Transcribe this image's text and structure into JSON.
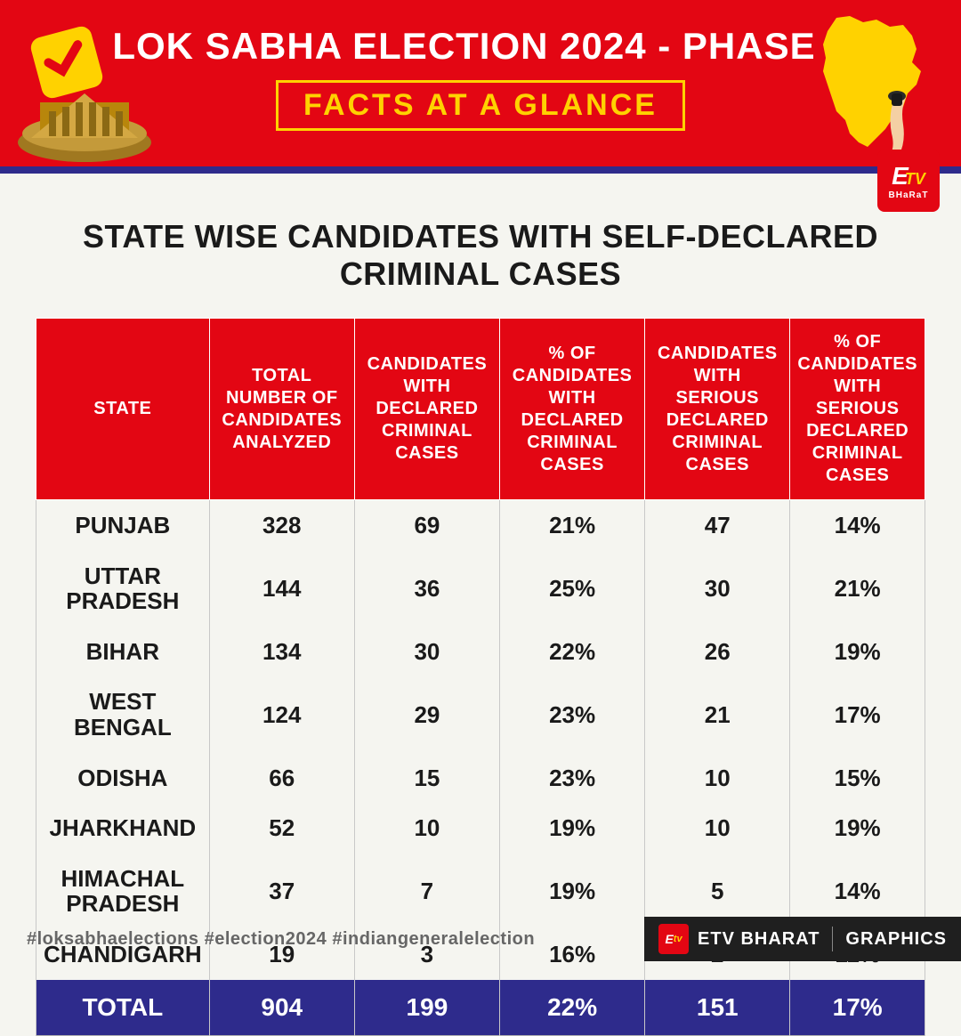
{
  "header": {
    "title": "LOK SABHA ELECTION 2024 - PHASE 7",
    "subtitle": "FACTS AT A GLANCE",
    "bg_color": "#e30613",
    "border_color": "#2e2b8c",
    "subtitle_border_color": "#ffd200",
    "subtitle_text_color": "#ffd200"
  },
  "brand": {
    "name_top1": "E",
    "name_top2": "TV",
    "name_bottom": "BHaRaT"
  },
  "table": {
    "title": "STATE WISE CANDIDATES WITH SELF-DECLARED CRIMINAL CASES",
    "columns": [
      "STATE",
      "TOTAL NUMBER OF CANDIDATES ANALYZED",
      "CANDIDATES WITH DECLARED CRIMINAL CASES",
      "% OF CANDIDATES WITH DECLARED CRIMINAL CASES",
      "CANDIDATES WITH SERIOUS DECLARED CRIMINAL CASES",
      "% OF CANDIDATES WITH SERIOUS DECLARED CRIMINAL CASES"
    ],
    "column_widths": [
      "18%",
      "17%",
      "17%",
      "17%",
      "17%",
      "14%"
    ],
    "header_bg": "#e30613",
    "header_fg": "#ffffff",
    "cell_border": "#c8c8c8",
    "rows": [
      {
        "state": "PUNJAB",
        "total": "328",
        "criminal": "69",
        "pct_criminal": "21%",
        "serious": "47",
        "pct_serious": "14%"
      },
      {
        "state": "UTTAR PRADESH",
        "total": "144",
        "criminal": "36",
        "pct_criminal": "25%",
        "serious": "30",
        "pct_serious": "21%"
      },
      {
        "state": "BIHAR",
        "total": "134",
        "criminal": "30",
        "pct_criminal": "22%",
        "serious": "26",
        "pct_serious": "19%"
      },
      {
        "state": "WEST BENGAL",
        "total": "124",
        "criminal": "29",
        "pct_criminal": "23%",
        "serious": "21",
        "pct_serious": "17%"
      },
      {
        "state": "ODISHA",
        "total": "66",
        "criminal": "15",
        "pct_criminal": "23%",
        "serious": "10",
        "pct_serious": "15%"
      },
      {
        "state": "JHARKHAND",
        "total": "52",
        "criminal": "10",
        "pct_criminal": "19%",
        "serious": "10",
        "pct_serious": "19%"
      },
      {
        "state": "HIMACHAL PRADESH",
        "total": "37",
        "criminal": "7",
        "pct_criminal": "19%",
        "serious": "5",
        "pct_serious": "14%"
      },
      {
        "state": "CHANDIGARH",
        "total": "19",
        "criminal": "3",
        "pct_criminal": "16%",
        "serious": "2",
        "pct_serious": "11%"
      }
    ],
    "total_row": {
      "label": "TOTAL",
      "total": "904",
      "criminal": "199",
      "pct_criminal": "22%",
      "serious": "151",
      "pct_serious": "17%"
    },
    "total_bg": "#2e2b8c",
    "total_fg": "#ffffff"
  },
  "footer": {
    "hashtags": "#loksabhaelections   #election2024   #indiangeneralelection",
    "credit_brand": "ETV BHARAT",
    "credit_section": "GRAPHICS"
  },
  "icons": {
    "ballot_color": "#ffd200",
    "building_color": "#8b6914",
    "map_color": "#ffd200",
    "finger_color": "#f4d0a4"
  }
}
